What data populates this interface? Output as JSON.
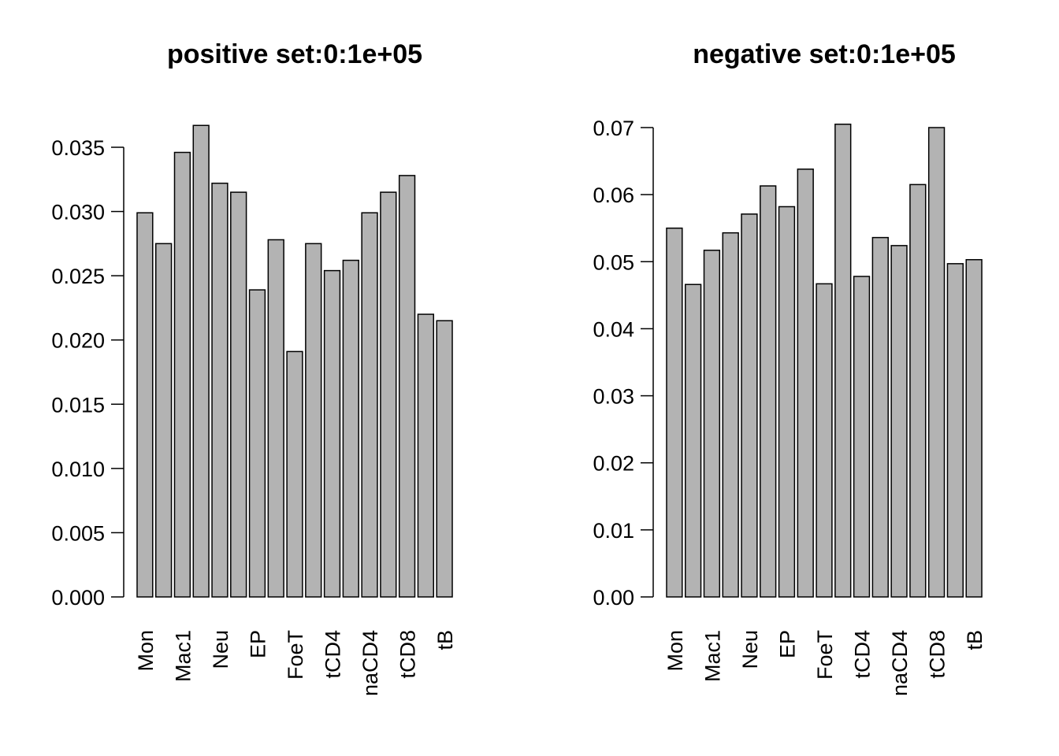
{
  "chart_data": [
    {
      "type": "bar",
      "title": "positive set:0:1e+05",
      "xlabel": "",
      "ylabel": "",
      "ylim": [
        0,
        0.035
      ],
      "yticks": [
        "0.000",
        "0.005",
        "0.010",
        "0.015",
        "0.020",
        "0.025",
        "0.030",
        "0.035"
      ],
      "bar_color": "#b3b3b3",
      "categories": [
        "Mon",
        "",
        "Mac1",
        "",
        "Neu",
        "",
        "EP",
        "",
        "FoeT",
        "",
        "tCD4",
        "",
        "naCD4",
        "",
        "tCD8",
        "",
        "tB"
      ],
      "values": [
        0.0299,
        0.0275,
        0.0346,
        0.0367,
        0.0322,
        0.0315,
        0.0239,
        0.0278,
        0.0191,
        0.0275,
        0.0254,
        0.0262,
        0.0299,
        0.0315,
        0.0328,
        0.022,
        0.0215
      ]
    },
    {
      "type": "bar",
      "title": "negative set:0:1e+05",
      "xlabel": "",
      "ylabel": "",
      "ylim": [
        0,
        0.07
      ],
      "yticks": [
        "0.00",
        "0.01",
        "0.02",
        "0.03",
        "0.04",
        "0.05",
        "0.06",
        "0.07"
      ],
      "bar_color": "#b3b3b3",
      "categories": [
        "Mon",
        "",
        "Mac1",
        "",
        "Neu",
        "",
        "EP",
        "",
        "FoeT",
        "",
        "tCD4",
        "",
        "naCD4",
        "",
        "tCD8",
        "",
        "tB"
      ],
      "values": [
        0.055,
        0.0466,
        0.0517,
        0.0543,
        0.0571,
        0.0613,
        0.0582,
        0.0638,
        0.0467,
        0.0705,
        0.0478,
        0.0536,
        0.0524,
        0.0615,
        0.07,
        0.0497,
        0.0503
      ]
    }
  ]
}
